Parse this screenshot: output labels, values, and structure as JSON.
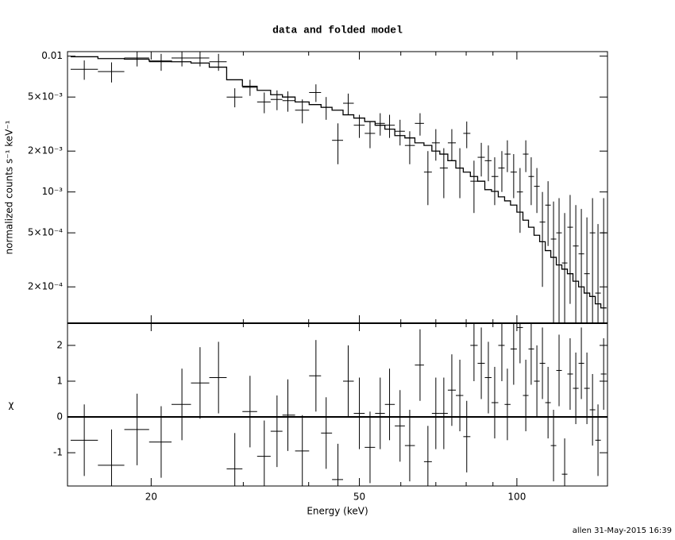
{
  "chart_data": [
    {
      "type": "errorbar",
      "title": "data and folded model",
      "y_label": "normalized counts s⁻¹ keV⁻¹",
      "log": true,
      "color": "#000000",
      "x": [
        14.9,
        16.8,
        18.8,
        20.9,
        22.9,
        24.8,
        26.9,
        28.9,
        30.9,
        32.9,
        34.8,
        36.5,
        38.9,
        41.3,
        43.2,
        45.5,
        47.6,
        50.0,
        52.4,
        54.8,
        57.1,
        59.8,
        62.4,
        65.3,
        67.6,
        70.0,
        72.5,
        75.1,
        77.8,
        80.2,
        82.8,
        85.5,
        88.2,
        90.7,
        93.6,
        95.9,
        98.6,
        101.4,
        104.0,
        106.5,
        109.2,
        111.9,
        114.7,
        117.5,
        120.4,
        123.4,
        126.4,
        129.6,
        132.8,
        136.1,
        139.5,
        142.9,
        146.5
      ],
      "values": [
        0.008,
        0.0077,
        0.0097,
        0.0091,
        0.0097,
        0.0097,
        0.0091,
        0.005,
        0.0059,
        0.0046,
        0.0048,
        0.0047,
        0.004,
        0.0054,
        0.0042,
        0.0024,
        0.0045,
        0.0031,
        0.0027,
        0.0032,
        0.0031,
        0.0028,
        0.0022,
        0.0032,
        0.0014,
        0.0023,
        0.0015,
        0.0023,
        0.0015,
        0.0027,
        0.0012,
        0.0018,
        0.0017,
        0.0013,
        0.0015,
        0.0019,
        0.0014,
        0.001,
        0.0019,
        0.0013,
        0.0011,
        0.0006,
        0.0008,
        0.00045,
        0.0005,
        0.0003,
        0.00055,
        0.0004,
        0.00035,
        0.00025,
        0.0005,
        0.00018,
        0.0005
      ],
      "errors": [
        0.0013,
        0.0013,
        0.0013,
        0.0013,
        0.0013,
        0.0013,
        0.0013,
        0.0008,
        0.0008,
        0.0008,
        0.0008,
        0.0008,
        0.0008,
        0.0008,
        0.0008,
        0.0008,
        0.0008,
        0.0006,
        0.0006,
        0.0006,
        0.0006,
        0.0006,
        0.0006,
        0.0006,
        0.0006,
        0.0006,
        0.0006,
        0.0006,
        0.0006,
        0.0006,
        0.0005,
        0.0005,
        0.0005,
        0.0005,
        0.0005,
        0.0005,
        0.0005,
        0.0005,
        0.0005,
        0.0005,
        0.0004,
        0.0004,
        0.0004,
        0.0004,
        0.0004,
        0.0004,
        0.0004,
        0.0004,
        0.0004,
        0.0004,
        0.0004,
        0.0004,
        0.0004
      ],
      "model": [
        0.0099,
        0.0096,
        0.0095,
        0.0092,
        0.0091,
        0.0089,
        0.0083,
        0.0067,
        0.006,
        0.0056,
        0.0052,
        0.005,
        0.0046,
        0.0044,
        0.0042,
        0.004,
        0.0037,
        0.0035,
        0.0033,
        0.0031,
        0.0029,
        0.0026,
        0.0025,
        0.0023,
        0.0022,
        0.002,
        0.0019,
        0.0017,
        0.0015,
        0.0014,
        0.0013,
        0.0012,
        0.00104,
        0.00101,
        0.00092,
        0.00086,
        0.0008,
        0.00071,
        0.00062,
        0.00055,
        0.00048,
        0.00043,
        0.00037,
        0.00033,
        0.00029,
        0.00027,
        0.00025,
        0.00022,
        0.0002,
        0.00018,
        0.00017,
        0.00015,
        0.00014
      ],
      "xlim": [
        13.84,
        149
      ],
      "ylim": [
        0.000108,
        0.0108
      ],
      "yticks": [
        {
          "value": 0.01,
          "label": "0.01"
        },
        {
          "value": 0.005,
          "label": "5×10⁻³"
        },
        {
          "value": 0.002,
          "label": "2×10⁻³"
        },
        {
          "value": 0.001,
          "label": "10⁻³"
        },
        {
          "value": 0.0005,
          "label": "5×10⁻⁴"
        },
        {
          "value": 0.0002,
          "label": "2×10⁻⁴"
        }
      ]
    },
    {
      "type": "residual",
      "y_label": "χ",
      "x_label": "Energy (keV)",
      "color": "#000000",
      "reference": 0,
      "reference_color": "#33cc33",
      "values": [
        -0.65,
        -1.35,
        -0.35,
        -0.7,
        0.35,
        0.95,
        1.1,
        -1.45,
        0.15,
        -1.1,
        -0.4,
        0.05,
        -0.95,
        1.15,
        -0.45,
        -1.75,
        1.0,
        0.1,
        -0.85,
        0.1,
        0.35,
        -0.25,
        -0.8,
        1.45,
        -1.25,
        0.1,
        0.1,
        0.75,
        0.6,
        -0.55,
        2.0,
        1.5,
        1.1,
        0.4,
        2.0,
        0.35,
        1.9,
        2.5,
        0.6,
        1.9,
        1.0,
        1.5,
        0.4,
        -0.8,
        1.3,
        -1.6,
        1.2,
        0.8,
        1.5,
        0.8,
        0.2,
        -0.65,
        1.2
      ],
      "residual_error": 1,
      "xlim": [
        13.84,
        149
      ],
      "ylim": [
        -1.93,
        2.62
      ],
      "yticks": [
        -1,
        0,
        1,
        2
      ],
      "xticks": [
        20,
        50,
        100
      ],
      "xminor": [
        30,
        40,
        60,
        70,
        80,
        90
      ]
    }
  ],
  "footer": "allen 31-May-2015 16:39"
}
